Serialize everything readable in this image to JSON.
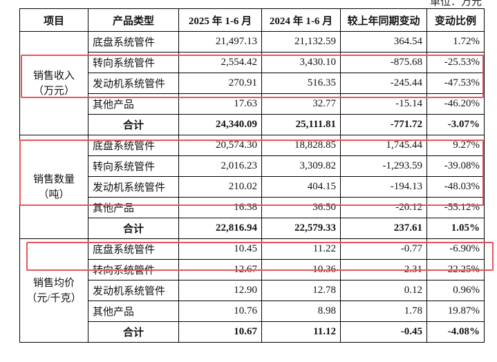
{
  "header": {
    "unit": "单位：万元"
  },
  "table": {
    "columns": [
      "项目",
      "产品类型",
      "2025 年 1-6 月",
      "2024 年 1-6 月",
      "较上年同期变动",
      "变动比例"
    ],
    "groups": [
      {
        "label": "销售收入",
        "unit": "（万元）",
        "rows": [
          [
            "底盘系统管件",
            "21,497.13",
            "21,132.59",
            "364.54",
            "1.72%"
          ],
          [
            "转向系统管件",
            "2,554.42",
            "3,430.10",
            "-875.68",
            "-25.53%"
          ],
          [
            "发动机系统管件",
            "270.91",
            "516.35",
            "-245.44",
            "-47.53%"
          ],
          [
            "其他产品",
            "17.63",
            "32.77",
            "-15.14",
            "-46.20%"
          ],
          [
            "合计",
            "24,340.09",
            "25,111.81",
            "-771.72",
            "-3.07%"
          ]
        ]
      },
      {
        "label": "销售数量",
        "unit": "（吨）",
        "rows": [
          [
            "底盘系统管件",
            "20,574.30",
            "18,828.85",
            "1,745.44",
            "9.27%"
          ],
          [
            "转向系统管件",
            "2,016.23",
            "3,309.82",
            "-1,293.59",
            "-39.08%"
          ],
          [
            "发动机系统管件",
            "210.02",
            "404.15",
            "-194.13",
            "-48.03%"
          ],
          [
            "其他产品",
            "16.38",
            "36.50",
            "-20.12",
            "-55.12%"
          ],
          [
            "合计",
            "22,816.94",
            "22,579.33",
            "237.61",
            "1.05%"
          ]
        ]
      },
      {
        "label": "销售均价",
        "unit": "（元/千克）",
        "rows": [
          [
            "底盘系统管件",
            "10.45",
            "11.22",
            "-0.77",
            "-6.90%"
          ],
          [
            "转向系统管件",
            "12.67",
            "10.36",
            "2.31",
            "22.25%"
          ],
          [
            "发动机系统管件",
            "12.90",
            "12.78",
            "0.12",
            "0.96%"
          ],
          [
            "其他产品",
            "10.76",
            "8.98",
            "1.78",
            "19.87%"
          ],
          [
            "合计",
            "10.67",
            "11.12",
            "-0.45",
            "-4.08%"
          ]
        ]
      }
    ]
  }
}
